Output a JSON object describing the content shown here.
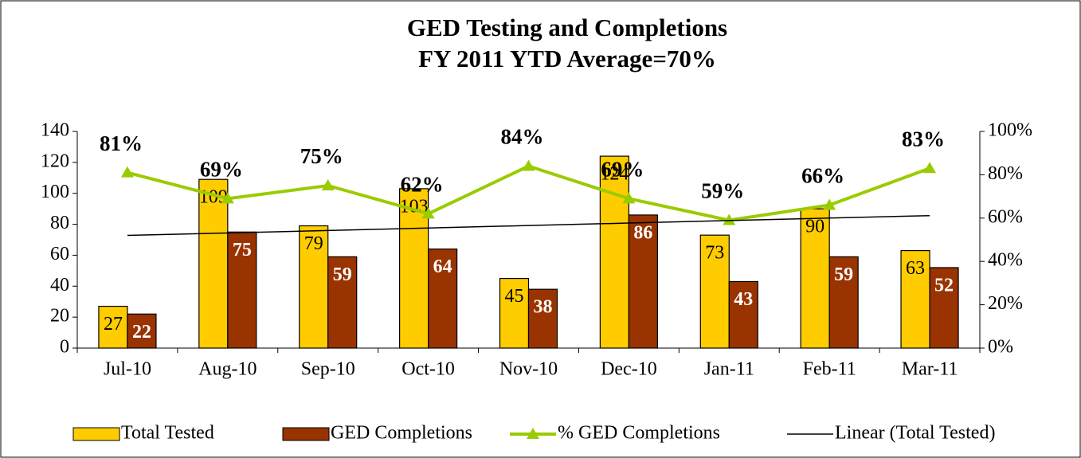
{
  "chart_data": {
    "type": "bar",
    "title": "GED Testing and Completions",
    "subtitle": "FY 2011 YTD Average=70%",
    "categories": [
      "Jul-10",
      "Aug-10",
      "Sep-10",
      "Oct-10",
      "Nov-10",
      "Dec-10",
      "Jan-11",
      "Feb-11",
      "Mar-11"
    ],
    "series": [
      {
        "name": "Total Tested",
        "type": "bar",
        "color": "#FFCC00",
        "values": [
          27,
          109,
          79,
          103,
          45,
          124,
          73,
          90,
          63
        ]
      },
      {
        "name": "GED Completions",
        "type": "bar",
        "color": "#993300",
        "values": [
          22,
          75,
          59,
          64,
          38,
          86,
          43,
          59,
          52
        ]
      },
      {
        "name": "% GED Completions",
        "type": "line",
        "axis": "y2",
        "color": "#99CC00",
        "marker": "triangle",
        "values": [
          81,
          69,
          75,
          62,
          84,
          69,
          59,
          66,
          83
        ],
        "value_labels": [
          "81%",
          "69%",
          "75%",
          "62%",
          "84%",
          "69%",
          "59%",
          "66%",
          "83%"
        ]
      },
      {
        "name": "Linear (Total Tested)",
        "type": "line",
        "color": "#000000",
        "values": [
          72.8,
          74.4,
          76.0,
          77.6,
          79.2,
          80.8,
          82.4,
          84.0,
          85.6
        ]
      }
    ],
    "ylim": [
      0,
      140
    ],
    "yticks": [
      0,
      20,
      40,
      60,
      80,
      100,
      120,
      140
    ],
    "y2lim": [
      0,
      100
    ],
    "y2ticks": [
      {
        "value": 0,
        "label": "0%"
      },
      {
        "value": 20,
        "label": "20%"
      },
      {
        "value": 40,
        "label": "40%"
      },
      {
        "value": 60,
        "label": "60%"
      },
      {
        "value": 80,
        "label": "80%"
      },
      {
        "value": 100,
        "label": "100%"
      }
    ],
    "grid": false,
    "legend": "bottom"
  }
}
